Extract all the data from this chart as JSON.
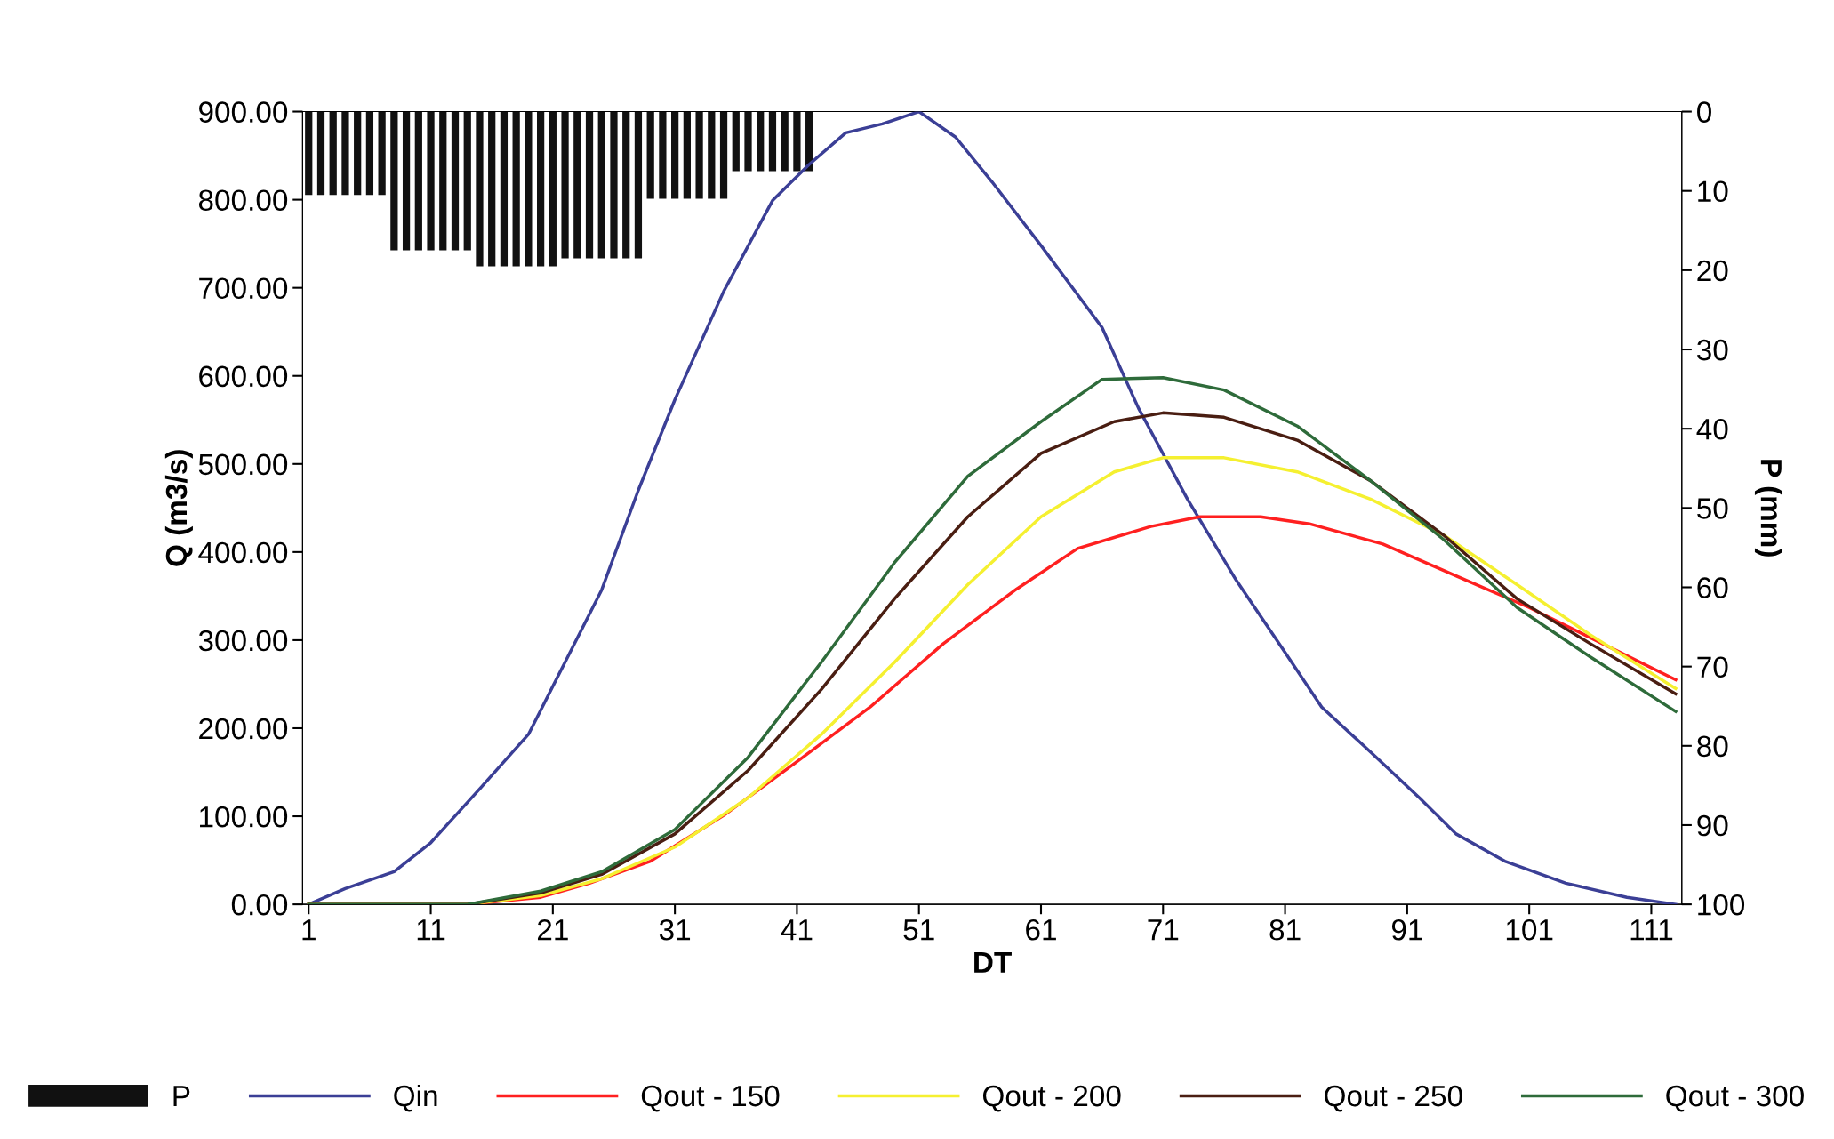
{
  "chart_data": {
    "type": "line",
    "xlabel": "DT",
    "ylabel": "Q (m3/s)",
    "y2label": "P (mm)",
    "xlim": [
      0.5,
      113.5
    ],
    "xticks": [
      1,
      11,
      21,
      31,
      41,
      51,
      61,
      71,
      81,
      91,
      101,
      111
    ],
    "ylim": [
      0,
      900
    ],
    "yticks": [
      {
        "value": 0,
        "label": "0.00"
      },
      {
        "value": 100,
        "label": "100.00"
      },
      {
        "value": 200,
        "label": "200.00"
      },
      {
        "value": 300,
        "label": "300.00"
      },
      {
        "value": 400,
        "label": "400.00"
      },
      {
        "value": 500,
        "label": "500.00"
      },
      {
        "value": 600,
        "label": "600.00"
      },
      {
        "value": 700,
        "label": "700.00"
      },
      {
        "value": 800,
        "label": "800.00"
      },
      {
        "value": 900,
        "label": "900.00"
      }
    ],
    "y2lim": [
      100,
      0
    ],
    "y2ticks": [
      0,
      10,
      20,
      30,
      40,
      50,
      60,
      70,
      80,
      90,
      100
    ],
    "grid": false,
    "legend": "bottom",
    "marker": "none",
    "line_style": "solid",
    "series": [
      {
        "name": "P",
        "type": "bar",
        "axis": "y2",
        "color": "#111111",
        "x": [
          1,
          2,
          3,
          4,
          5,
          6,
          7,
          8,
          9,
          10,
          11,
          12,
          13,
          14,
          15,
          16,
          17,
          18,
          19,
          20,
          21,
          22,
          23,
          24,
          25,
          26,
          27,
          28,
          29,
          30,
          31,
          32,
          33,
          34,
          35,
          36,
          37,
          38,
          39,
          40,
          41,
          42
        ],
        "values": [
          10.5,
          10.5,
          10.5,
          10.5,
          10.5,
          10.5,
          10.5,
          17.5,
          17.5,
          17.5,
          17.5,
          17.5,
          17.5,
          17.5,
          19.5,
          19.5,
          19.5,
          19.5,
          19.5,
          19.5,
          19.5,
          18.5,
          18.5,
          18.5,
          18.5,
          18.5,
          18.5,
          18.5,
          11,
          11,
          11,
          11,
          11,
          11,
          11,
          7.5,
          7.5,
          7.5,
          7.5,
          7.5,
          7.5,
          7.5
        ]
      },
      {
        "name": "Qin",
        "color": "#3b3f96",
        "x": [
          1,
          4,
          8,
          11,
          15,
          19,
          22,
          25,
          28,
          31,
          35,
          39,
          42,
          45,
          48,
          51,
          54,
          57,
          61,
          66,
          69,
          73,
          77,
          81,
          84,
          88,
          92,
          95,
          99,
          104,
          109,
          113
        ],
        "values": [
          0,
          18,
          37,
          70,
          131,
          193,
          275,
          357,
          470,
          573,
          696,
          799,
          840,
          876,
          886,
          900,
          871,
          820,
          748,
          655,
          563,
          460,
          368,
          286,
          224,
          173,
          121,
          80,
          49,
          24,
          8,
          0
        ]
      },
      {
        "name": "Qout - 150",
        "color": "#ff2020",
        "x": [
          1,
          14,
          20,
          24,
          29,
          35,
          41,
          47,
          53,
          59,
          64,
          70,
          74,
          79,
          83,
          89,
          95,
          101,
          107,
          113
        ],
        "values": [
          0,
          0,
          8,
          24,
          49,
          101,
          162,
          224,
          296,
          358,
          404,
          429,
          440,
          440,
          432,
          409,
          373,
          337,
          296,
          255
        ]
      },
      {
        "name": "Qout - 200",
        "color": "#f5f030",
        "x": [
          1,
          14,
          20,
          25,
          31,
          37,
          43,
          49,
          55,
          61,
          67,
          71,
          76,
          82,
          88,
          94,
          100,
          106,
          113
        ],
        "values": [
          0,
          0,
          10,
          29,
          65,
          121,
          193,
          275,
          363,
          440,
          491,
          507,
          507,
          491,
          460,
          419,
          363,
          306,
          245
        ]
      },
      {
        "name": "Qout - 250",
        "color": "#4a1e12",
        "x": [
          1,
          14,
          20,
          25,
          31,
          37,
          43,
          49,
          55,
          61,
          67,
          71,
          76,
          82,
          88,
          94,
          100,
          106,
          113
        ],
        "values": [
          0,
          0,
          13,
          34,
          80,
          152,
          244,
          347,
          440,
          512,
          548,
          558,
          553,
          527,
          481,
          419,
          347,
          296,
          239
        ]
      },
      {
        "name": "Qout - 300",
        "color": "#2e6b3a",
        "x": [
          1,
          14,
          20,
          25,
          31,
          37,
          43,
          49,
          55,
          61,
          66,
          71,
          76,
          82,
          88,
          94,
          100,
          106,
          113
        ],
        "values": [
          0,
          0,
          15,
          37,
          85,
          167,
          275,
          388,
          486,
          548,
          596,
          598,
          584,
          543,
          481,
          414,
          337,
          281,
          219
        ]
      }
    ]
  }
}
